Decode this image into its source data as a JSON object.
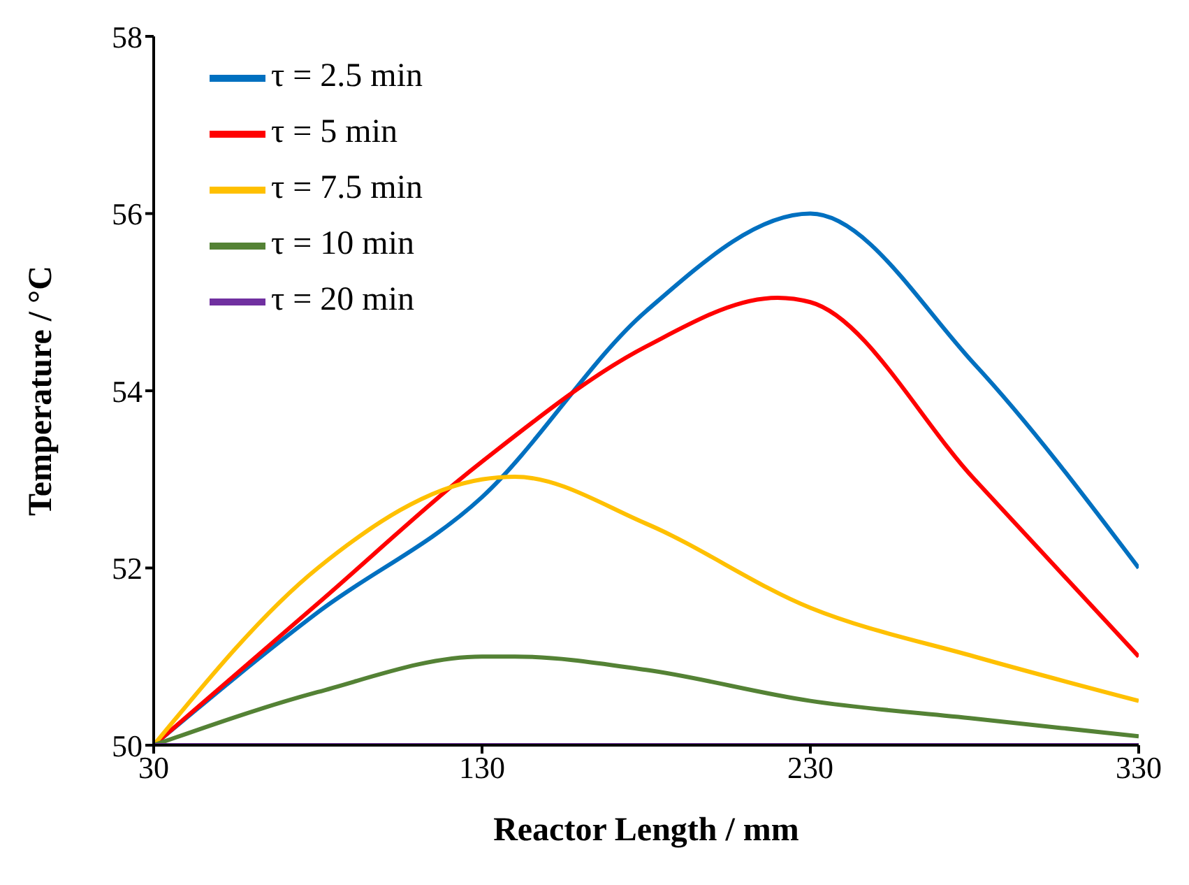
{
  "chart_data": {
    "type": "line",
    "xlabel": "Reactor Length  / mm",
    "ylabel": "Temperature  / °C",
    "xlim": [
      30,
      330
    ],
    "xticks": [
      30,
      130,
      230,
      330
    ],
    "ylim": [
      50,
      58
    ],
    "yticks": [
      50,
      52,
      54,
      56,
      58
    ],
    "grid": false,
    "legend": "top left",
    "marker": "none",
    "line_style": "solid",
    "series": [
      {
        "name": "τ = 2.5 min",
        "color": "#0070c0",
        "x": [
          30,
          80,
          130,
          180,
          230,
          280,
          330
        ],
        "values": [
          50,
          51.5,
          52.8,
          54.9,
          56,
          54.3,
          52
        ]
      },
      {
        "name": "τ = 5 min",
        "color": "#ff0000",
        "x": [
          30,
          80,
          130,
          180,
          220,
          230,
          280,
          330
        ],
        "values": [
          50,
          51.6,
          53.2,
          54.5,
          55.05,
          55,
          53,
          51
        ]
      },
      {
        "name": "τ = 7.5 min",
        "color": "#ffc000",
        "x": [
          30,
          80,
          130,
          140,
          180,
          230,
          280,
          330
        ],
        "values": [
          50,
          52,
          53,
          53.03,
          52.5,
          51.55,
          51,
          50.5
        ]
      },
      {
        "name": "τ = 10 min",
        "color": "#548235",
        "x": [
          30,
          80,
          130,
          140,
          180,
          230,
          280,
          330
        ],
        "values": [
          50,
          50.6,
          51,
          51,
          50.85,
          50.5,
          50.3,
          50.1
        ]
      },
      {
        "name": "τ = 20 min",
        "color": "#7030a0",
        "x": [
          30,
          130,
          230,
          330
        ],
        "values": [
          50,
          50,
          50,
          50
        ]
      }
    ]
  }
}
